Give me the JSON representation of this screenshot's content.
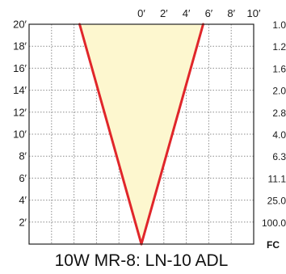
{
  "chart_data": {
    "type": "area",
    "title": "10W MR-8: LN-10 ADL",
    "x_ticks": [
      "0′",
      "2′",
      "4′",
      "6′",
      "8′",
      "10′"
    ],
    "y_ticks": [
      "2′",
      "4′",
      "6′",
      "8′",
      "10′",
      "12′",
      "14′",
      "16′",
      "18′",
      "20′"
    ],
    "xlim": [
      -10,
      10
    ],
    "ylim": [
      0,
      20
    ],
    "grid": true,
    "beam_edges": {
      "left": [
        {
          "x": 0,
          "y": 0
        },
        {
          "x": -5.5,
          "y": 20
        }
      ],
      "right": [
        {
          "x": 0,
          "y": 0
        },
        {
          "x": 5.5,
          "y": 20
        }
      ]
    },
    "colors": {
      "beam_line": "#e0262a",
      "beam_fill": "#fdf7cf",
      "grid": "#8c8c8c",
      "frame": "#222222"
    },
    "footcandles": {
      "values": [
        "1.0",
        "1.2",
        "1.6",
        "2.0",
        "2.8",
        "4.0",
        "6.3",
        "11.1",
        "25.0",
        "100.0"
      ],
      "label": "FC"
    }
  }
}
